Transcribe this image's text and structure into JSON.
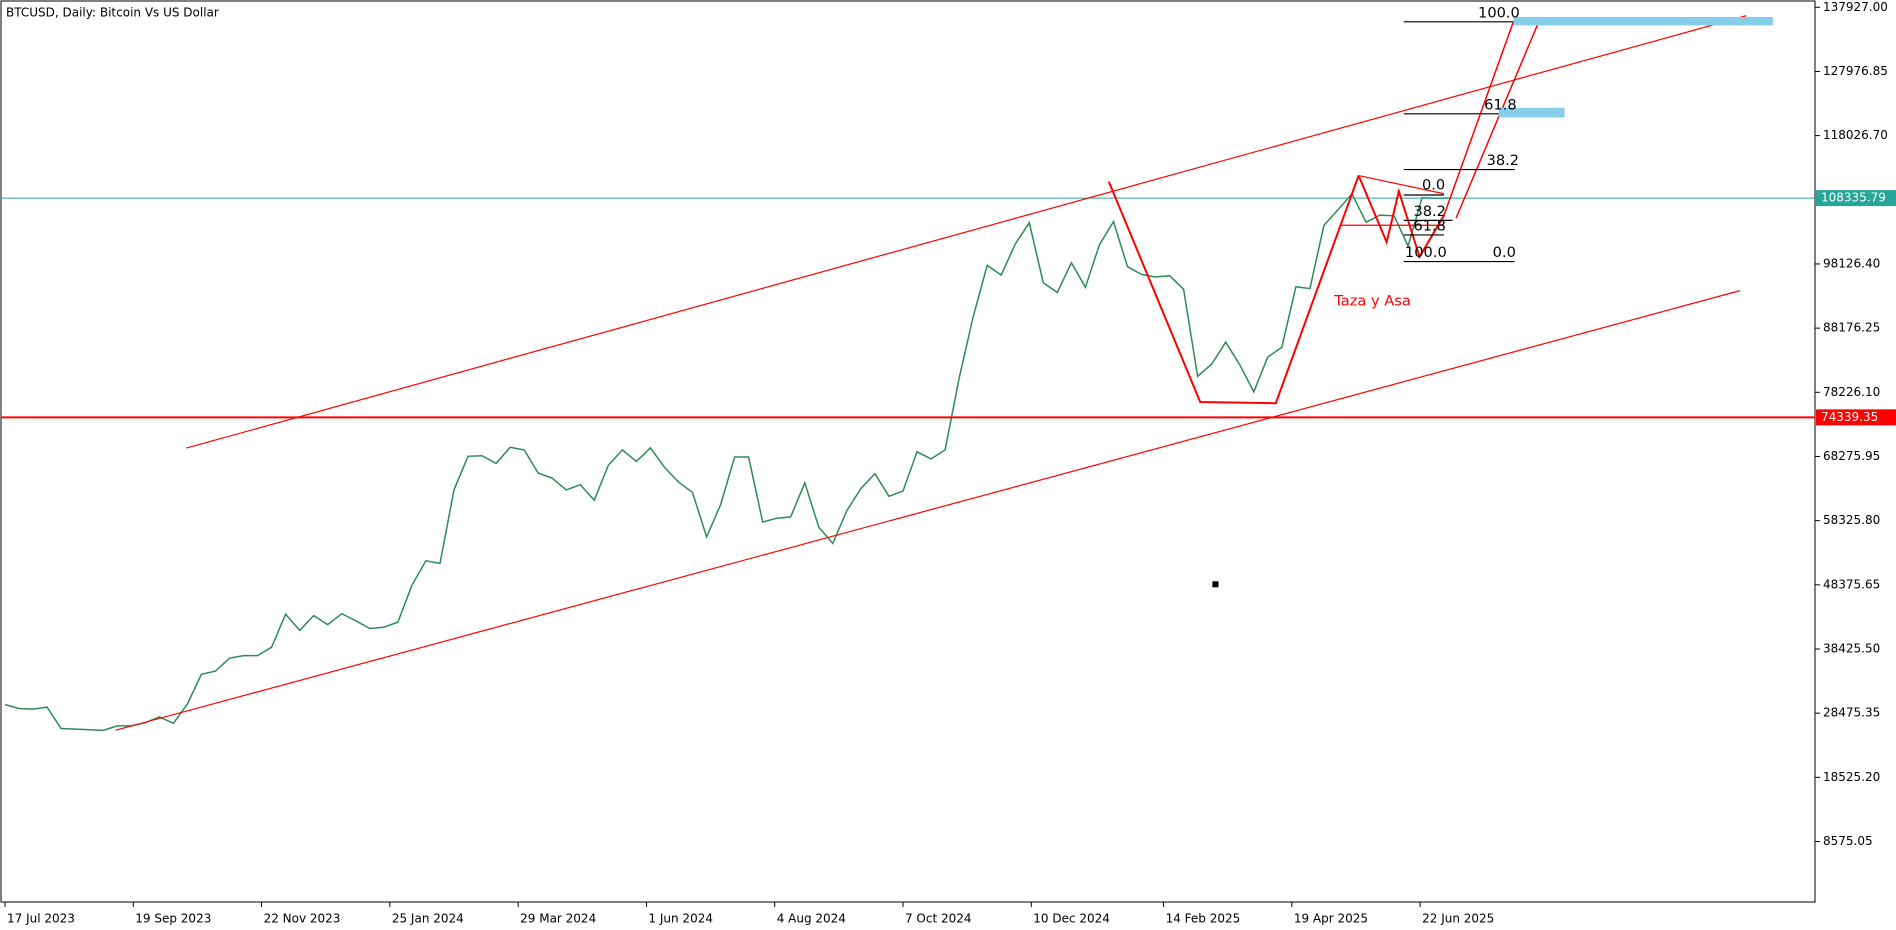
{
  "chart_data": {
    "type": "line",
    "title": "BTCUSD, Daily:  Bitcoin Vs US Dollar",
    "color": "#2e8b57",
    "x": [
      "2023-07-17",
      "2023-07-24",
      "2023-07-31",
      "2023-08-07",
      "2023-08-14",
      "2023-08-21",
      "2023-08-28",
      "2023-09-04",
      "2023-09-11",
      "2023-09-18",
      "2023-09-25",
      "2023-10-02",
      "2023-10-09",
      "2023-10-16",
      "2023-10-23",
      "2023-10-30",
      "2023-11-06",
      "2023-11-13",
      "2023-11-20",
      "2023-11-27",
      "2023-12-04",
      "2023-12-11",
      "2023-12-18",
      "2023-12-25",
      "2024-01-01",
      "2024-01-08",
      "2024-01-15",
      "2024-01-22",
      "2024-01-29",
      "2024-02-05",
      "2024-02-12",
      "2024-02-19",
      "2024-02-26",
      "2024-03-04",
      "2024-03-11",
      "2024-03-18",
      "2024-03-25",
      "2024-04-01",
      "2024-04-08",
      "2024-04-15",
      "2024-04-22",
      "2024-04-29",
      "2024-05-06",
      "2024-05-13",
      "2024-05-20",
      "2024-05-27",
      "2024-06-03",
      "2024-06-10",
      "2024-06-17",
      "2024-06-24",
      "2024-07-01",
      "2024-07-08",
      "2024-07-15",
      "2024-07-22",
      "2024-07-29",
      "2024-08-05",
      "2024-08-12",
      "2024-08-19",
      "2024-08-26",
      "2024-09-02",
      "2024-09-09",
      "2024-09-16",
      "2024-09-23",
      "2024-09-30",
      "2024-10-07",
      "2024-10-14",
      "2024-10-21",
      "2024-10-28",
      "2024-11-04",
      "2024-11-11",
      "2024-11-18",
      "2024-11-25",
      "2024-12-02",
      "2024-12-09",
      "2024-12-16",
      "2024-12-23",
      "2024-12-30",
      "2025-01-06",
      "2025-01-13",
      "2025-01-20",
      "2025-01-27",
      "2025-02-03",
      "2025-02-10",
      "2025-02-17",
      "2025-02-24",
      "2025-03-03",
      "2025-03-10",
      "2025-03-17",
      "2025-03-24",
      "2025-03-31",
      "2025-04-07",
      "2025-04-14",
      "2025-04-21",
      "2025-04-28",
      "2025-05-05",
      "2025-05-12",
      "2025-05-19",
      "2025-05-26",
      "2025-06-02",
      "2025-06-09",
      "2025-06-16",
      "2025-06-23",
      "2025-06-30",
      "2025-07-07"
    ],
    "values": [
      29800,
      29200,
      29100,
      29400,
      26100,
      26000,
      25900,
      25800,
      26500,
      26500,
      27000,
      27900,
      26900,
      29900,
      34500,
      35000,
      37000,
      37400,
      37400,
      38700,
      43800,
      41300,
      43600,
      42200,
      43900,
      42800,
      41600,
      41800,
      42600,
      48300,
      52100,
      51700,
      63100,
      68300,
      68400,
      67200,
      69700,
      69300,
      65700,
      64900,
      63100,
      63900,
      61500,
      66900,
      69300,
      67500,
      69600,
      66600,
      64300,
      62700,
      55800,
      60800,
      68200,
      68200,
      58100,
      58700,
      58900,
      64200,
      57300,
      54800,
      59900,
      63300,
      65600,
      62100,
      62900,
      69000,
      67900,
      69300,
      80400,
      89900,
      97900,
      96400,
      101200,
      104500,
      95200,
      93700,
      98300,
      94500,
      101100,
      104700,
      97700,
      96500,
      96100,
      96300,
      94200,
      80700,
      82600,
      86000,
      82500,
      78300,
      83700,
      85200,
      94600,
      94300,
      104100,
      106500,
      109000,
      104600,
      105700,
      105600,
      100900,
      108400,
      108300,
      108335.79
    ],
    "xlim": [
      "2023-07-15",
      "2026-01-05"
    ],
    "xticks": [
      {
        "value": "2023-07-17",
        "label": "17 Jul 2023"
      },
      {
        "value": "2023-09-19",
        "label": "19 Sep 2023"
      },
      {
        "value": "2023-11-22",
        "label": "22 Nov 2023"
      },
      {
        "value": "2024-01-25",
        "label": "25 Jan 2024"
      },
      {
        "value": "2024-03-29",
        "label": "29 Mar 2024"
      },
      {
        "value": "2024-06-01",
        "label": "1 Jun 2024"
      },
      {
        "value": "2024-08-04",
        "label": "4 Aug 2024"
      },
      {
        "value": "2024-10-07",
        "label": "7 Oct 2024"
      },
      {
        "value": "2024-12-10",
        "label": "10 Dec 2024"
      },
      {
        "value": "2025-02-14",
        "label": "14 Feb 2025"
      },
      {
        "value": "2025-04-19",
        "label": "19 Apr 2025"
      },
      {
        "value": "2025-06-22",
        "label": "22 Jun 2025"
      }
    ],
    "ylim": [
      -805,
      139053
    ],
    "yticks": [
      {
        "value": 137927,
        "label": "137927.00"
      },
      {
        "value": 127976.85,
        "label": "127976.85"
      },
      {
        "value": 118026.7,
        "label": "118026.70"
      },
      {
        "value": 98126.4,
        "label": "98126.40"
      },
      {
        "value": 88176.25,
        "label": "88176.25"
      },
      {
        "value": 78226.1,
        "label": "78226.10"
      },
      {
        "value": 68275.95,
        "label": "68275.95"
      },
      {
        "value": 58325.8,
        "label": "58325.80"
      },
      {
        "value": 48375.65,
        "label": "48375.65"
      },
      {
        "value": 38425.5,
        "label": "38425.50"
      },
      {
        "value": 28475.35,
        "label": "28475.35"
      },
      {
        "value": 18525.2,
        "label": "18525.20"
      },
      {
        "value": 8575.05,
        "label": "8575.05"
      }
    ],
    "hlines": [
      {
        "value": 108335.79,
        "color": "#26a69a"
      },
      {
        "value": 74339.35,
        "color": "#ff0000"
      }
    ],
    "annotations": [
      "Taza y Asa"
    ],
    "fib_top": [
      "100.0",
      "61.8",
      "38.2"
    ],
    "fib_small": [
      "0.0",
      "38.2",
      "61.8",
      "100.0",
      "0.0"
    ]
  }
}
